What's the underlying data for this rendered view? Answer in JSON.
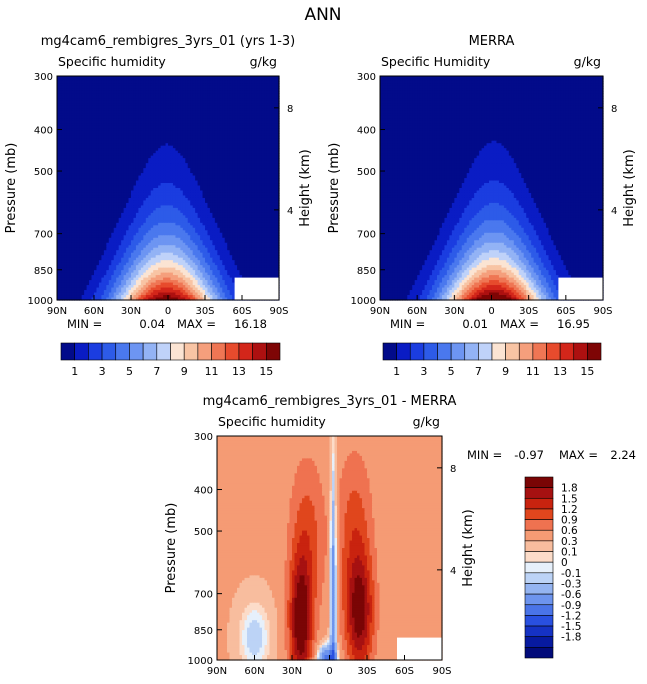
{
  "page": {
    "title": "ANN"
  },
  "colors": {
    "seq_levels": [
      "#020b8a",
      "#0a1cc4",
      "#1b3de0",
      "#2d5be8",
      "#4a78ee",
      "#6d95f2",
      "#93b3f5",
      "#bfd2f9",
      "#fbe4d3",
      "#f8c4a4",
      "#f59f7c",
      "#ef7654",
      "#e74b2d",
      "#d3261a",
      "#ad1010",
      "#7e0505"
    ],
    "div_levels": [
      "#7a0505",
      "#a61111",
      "#c9230f",
      "#e0461d",
      "#ef7250",
      "#f59b74",
      "#f8bd9e",
      "#fcdcc9",
      "#e6f0fb",
      "#bcd3f6",
      "#94b4f1",
      "#6d94ee",
      "#4a74e8",
      "#2950e0",
      "#1532c4",
      "#071aa0",
      "#020b7a"
    ]
  },
  "chart_data": [
    {
      "type": "contour",
      "id": "model",
      "title": "mg4cam6_rembigres_3yrs_01 (yrs 1-3)",
      "left_label": "Specific humidity",
      "units": "g/kg",
      "ylabel": "Pressure (mb)",
      "y2label": "Height (km)",
      "xticks": [
        "90N",
        "60N",
        "30N",
        "0",
        "30S",
        "60S",
        "90S"
      ],
      "yticks": [
        "300",
        "400",
        "500",
        "700",
        "850",
        "1000"
      ],
      "y2ticks": [
        "8",
        "4"
      ],
      "stats": {
        "min_label": "MIN =",
        "min": "0.04",
        "max_label": "MAX =",
        "max": "16.18"
      },
      "levels": [
        1,
        2,
        3,
        4,
        5,
        6,
        7,
        8,
        9,
        10,
        11,
        12,
        13,
        14,
        15
      ],
      "peak": 16.18,
      "colorbar_labels": [
        "1",
        "3",
        "5",
        "7",
        "9",
        "11",
        "13",
        "15"
      ]
    },
    {
      "type": "contour",
      "id": "obs",
      "title": "MERRA",
      "left_label": "Specific Humidity",
      "units": "g/kg",
      "ylabel": "Pressure (mb)",
      "y2label": "Height (km)",
      "xticks": [
        "90N",
        "60N",
        "30N",
        "0",
        "30S",
        "60S",
        "90S"
      ],
      "yticks": [
        "300",
        "400",
        "500",
        "700",
        "850",
        "1000"
      ],
      "y2ticks": [
        "8",
        "4"
      ],
      "stats": {
        "min_label": "MIN =",
        "min": "0.01",
        "max_label": "MAX =",
        "max": "16.95"
      },
      "levels": [
        1,
        2,
        3,
        4,
        5,
        6,
        7,
        8,
        9,
        10,
        11,
        12,
        13,
        14,
        15
      ],
      "peak": 16.95,
      "colorbar_labels": [
        "1",
        "3",
        "5",
        "7",
        "9",
        "11",
        "13",
        "15"
      ]
    },
    {
      "type": "contour",
      "id": "diff",
      "title": "mg4cam6_rembigres_3yrs_01 - MERRA",
      "left_label": "Specific humidity",
      "units": "g/kg",
      "ylabel": "Pressure (mb)",
      "y2label": "Height (km)",
      "xticks": [
        "90N",
        "60N",
        "30N",
        "0",
        "30S",
        "60S",
        "90S"
      ],
      "yticks": [
        "300",
        "400",
        "500",
        "700",
        "850",
        "1000"
      ],
      "y2ticks": [
        "8",
        "4"
      ],
      "stats": {
        "min_label": "MIN =",
        "min": "-0.97",
        "max_label": "MAX =",
        "max": "2.24"
      },
      "levels": [
        -1.8,
        -1.5,
        -1.2,
        -0.9,
        -0.6,
        -0.3,
        -0.1,
        0,
        0.1,
        0.3,
        0.6,
        0.9,
        1.2,
        1.5,
        1.8
      ],
      "colorbar_labels": [
        "1.8",
        "1.5",
        "1.2",
        "0.9",
        "0.6",
        "0.3",
        "0.1",
        "0",
        "-0.1",
        "-0.3",
        "-0.6",
        "-0.9",
        "-1.2",
        "-1.5",
        "-1.8"
      ]
    }
  ]
}
